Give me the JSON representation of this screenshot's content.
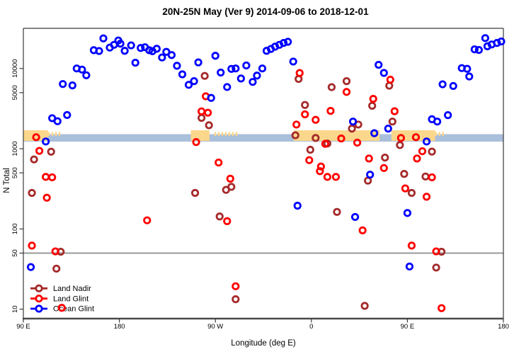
{
  "chart_data": {
    "type": "scatter",
    "title": "20N-25N May (Ver 9)   2014-09-06 to 2018-12-01",
    "xlabel": "Longitude (deg E)",
    "ylabel": "N Total",
    "x_axis": {
      "range_deg": [
        90,
        540
      ],
      "ticks": [
        {
          "lon": 90,
          "label": "90 E"
        },
        {
          "lon": 180,
          "label": "180"
        },
        {
          "lon": 270,
          "label": "90 W"
        },
        {
          "lon": 360,
          "label": "0"
        },
        {
          "lon": 450,
          "label": "90 E"
        },
        {
          "lon": 540,
          "label": "180"
        }
      ]
    },
    "y_axis": {
      "scale": "log",
      "range": [
        7.6,
        31700
      ],
      "ticks": [
        {
          "value": 10000,
          "label": "10000"
        },
        {
          "value": 5000,
          "label": "5000"
        },
        {
          "value": 1000,
          "label": "1000"
        },
        {
          "value": 500,
          "label": "500"
        },
        {
          "value": 100,
          "label": "100"
        },
        {
          "value": 50,
          "label": "50"
        },
        {
          "value": 10,
          "label": "10"
        }
      ]
    },
    "ref_line_n": 50,
    "ref_line_color": "#999999",
    "map_strip": {
      "ocean_color": "#a9bfdb",
      "land_color": "#fbd78c",
      "land_lon_ranges": [
        {
          "from": 90,
          "to": 113,
          "type": "solid"
        },
        {
          "from": 113,
          "to": 125,
          "type": "speckle"
        },
        {
          "from": 247,
          "to": 264.5,
          "type": "solid"
        },
        {
          "from": 269,
          "to": 289,
          "type": "speckle"
        },
        {
          "from": 343.5,
          "to": 424,
          "type": "solid"
        },
        {
          "from": 435,
          "to": 476,
          "type": "solid"
        },
        {
          "from": 476,
          "to": 484,
          "type": "speckle"
        }
      ]
    },
    "legend_position": "bottom-left",
    "series": [
      {
        "id": "land-nadir",
        "name": "Land Nadir",
        "color": "#a52a2a",
        "points": [
          [
            116,
            918
          ],
          [
            100,
            735
          ],
          [
            98,
            281
          ],
          [
            125,
            52
          ],
          [
            121,
            32
          ],
          [
            260,
            8080
          ],
          [
            257,
            2420
          ],
          [
            264,
            1960
          ],
          [
            285,
            335
          ],
          [
            280,
            307
          ],
          [
            251,
            281
          ],
          [
            274,
            143
          ],
          [
            289,
            13.3
          ],
          [
            348,
            7400
          ],
          [
            354,
            3510
          ],
          [
            345,
            1470
          ],
          [
            364,
            1360
          ],
          [
            375,
            1160
          ],
          [
            359,
            970
          ],
          [
            379,
            5850
          ],
          [
            393,
            6950
          ],
          [
            384,
            163
          ],
          [
            398,
            1780
          ],
          [
            404,
            2000
          ],
          [
            413,
            400
          ],
          [
            417,
            3430
          ],
          [
            433,
            6100
          ],
          [
            429,
            775
          ],
          [
            436,
            2180
          ],
          [
            443,
            1110
          ],
          [
            447,
            485
          ],
          [
            454,
            281
          ],
          [
            467,
            450
          ],
          [
            473,
            920
          ],
          [
            482,
            52
          ],
          [
            477,
            33
          ],
          [
            410,
            11
          ]
        ]
      },
      {
        "id": "land-glint",
        "name": "Land Glint",
        "color": "#ff0000",
        "points": [
          [
            102,
            1390
          ],
          [
            105,
            940
          ],
          [
            98,
            62
          ],
          [
            111,
            445
          ],
          [
            117,
            440
          ],
          [
            112,
            245
          ],
          [
            206,
            128
          ],
          [
            120,
            52.5
          ],
          [
            126,
            10.4
          ],
          [
            261,
            4500
          ],
          [
            257,
            2920
          ],
          [
            263,
            2810
          ],
          [
            252,
            1210
          ],
          [
            273,
            672
          ],
          [
            284,
            423
          ],
          [
            281,
            125
          ],
          [
            289,
            19.3
          ],
          [
            349,
            8780
          ],
          [
            354,
            2680
          ],
          [
            364,
            2290
          ],
          [
            346,
            2000
          ],
          [
            373,
            1150
          ],
          [
            358,
            720
          ],
          [
            369,
            600
          ],
          [
            368,
            525
          ],
          [
            375,
            445
          ],
          [
            383,
            445
          ],
          [
            393,
            5100
          ],
          [
            378,
            2960
          ],
          [
            388,
            1340
          ],
          [
            403,
            1190
          ],
          [
            408,
            96
          ],
          [
            414,
            755
          ],
          [
            418,
            4180
          ],
          [
            428,
            574
          ],
          [
            434,
            7250
          ],
          [
            438,
            2930
          ],
          [
            444,
            1360
          ],
          [
            458,
            1390
          ],
          [
            459,
            755
          ],
          [
            464,
            930
          ],
          [
            448,
            320
          ],
          [
            468,
            252
          ],
          [
            454,
            62
          ],
          [
            473,
            440
          ],
          [
            477,
            52.5
          ],
          [
            482,
            10.3
          ]
        ]
      },
      {
        "id": "ocean-glint",
        "name": "Ocean Glint",
        "color": "#0000ff",
        "points": [
          [
            117,
            2400
          ],
          [
            122,
            2200
          ],
          [
            131,
            2630
          ],
          [
            127,
            6400
          ],
          [
            136,
            6150
          ],
          [
            140,
            10000
          ],
          [
            145,
            9680
          ],
          [
            149,
            8230
          ],
          [
            156,
            16900
          ],
          [
            161,
            16500
          ],
          [
            165,
            23700
          ],
          [
            171,
            18200
          ],
          [
            175,
            19700
          ],
          [
            179,
            22300
          ],
          [
            181,
            20400
          ],
          [
            185,
            16600
          ],
          [
            191,
            19400
          ],
          [
            195,
            11800
          ],
          [
            200,
            18000
          ],
          [
            204,
            18400
          ],
          [
            208,
            16900
          ],
          [
            211,
            16400
          ],
          [
            215,
            17600
          ],
          [
            220,
            13700
          ],
          [
            224,
            16100
          ],
          [
            229,
            14700
          ],
          [
            234,
            10800
          ],
          [
            239,
            8450
          ],
          [
            245,
            6250
          ],
          [
            250,
            6950
          ],
          [
            254,
            11900
          ],
          [
            266,
            4300
          ],
          [
            270,
            14400
          ],
          [
            275,
            8900
          ],
          [
            281,
            5870
          ],
          [
            285,
            9870
          ],
          [
            289,
            10000
          ],
          [
            294,
            7500
          ],
          [
            299,
            10900
          ],
          [
            305,
            6800
          ],
          [
            309,
            8150
          ],
          [
            314,
            10000
          ],
          [
            318,
            16600
          ],
          [
            322,
            17500
          ],
          [
            326,
            18700
          ],
          [
            330,
            19700
          ],
          [
            334,
            20800
          ],
          [
            338,
            21500
          ],
          [
            343,
            12200
          ],
          [
            347,
            195
          ],
          [
            97,
            33.5
          ],
          [
            111,
            1230
          ],
          [
            399,
            2180
          ],
          [
            401,
            141
          ],
          [
            415,
            475
          ],
          [
            419,
            1560
          ],
          [
            423,
            11100
          ],
          [
            428,
            8800
          ],
          [
            432,
            1780
          ],
          [
            450,
            158
          ],
          [
            452,
            34
          ],
          [
            468,
            1230
          ],
          [
            473,
            2330
          ],
          [
            478,
            2180
          ],
          [
            488,
            2620
          ],
          [
            483,
            6350
          ],
          [
            493,
            6050
          ],
          [
            501,
            10100
          ],
          [
            506,
            9900
          ],
          [
            508,
            7950
          ],
          [
            513,
            17300
          ],
          [
            517,
            17000
          ],
          [
            523,
            23900
          ],
          [
            525,
            18900
          ],
          [
            529,
            19900
          ],
          [
            534,
            20800
          ],
          [
            538,
            21700
          ]
        ]
      }
    ]
  }
}
